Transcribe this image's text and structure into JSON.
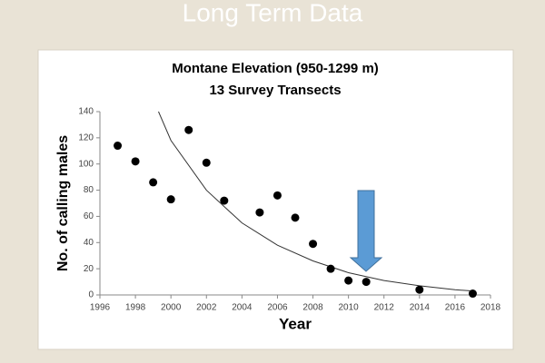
{
  "slide_title": "Long Term Data",
  "chart_data": {
    "type": "scatter",
    "title": "Montane Elevation (950-1299 m)",
    "subtitle": "13 Survey Transects",
    "x_label": "Year",
    "y_label": "No. of calling males",
    "x": [
      1997,
      1998,
      1999,
      2000,
      2001,
      2002,
      2003,
      2005,
      2006,
      2007,
      2008,
      2009,
      2010,
      2011,
      2014,
      2017
    ],
    "values": [
      114,
      102,
      86,
      73,
      126,
      101,
      72,
      63,
      76,
      59,
      39,
      20,
      11,
      10,
      4,
      1
    ],
    "color": "#000000",
    "trend": {
      "x": [
        1999.3,
        2000,
        2002,
        2004,
        2006,
        2008,
        2010,
        2012,
        2014,
        2016,
        2017
      ],
      "values": [
        140,
        118,
        80,
        55,
        38,
        26,
        17,
        11,
        7,
        4,
        3
      ],
      "color": "#333333"
    },
    "xlim": [
      1996,
      2018
    ],
    "xticks": [
      1996,
      1998,
      2000,
      2002,
      2004,
      2006,
      2008,
      2010,
      2012,
      2014,
      2016,
      2018
    ],
    "ylim": [
      0,
      140
    ],
    "yticks": [
      0,
      20,
      40,
      60,
      80,
      100,
      120,
      140
    ]
  }
}
